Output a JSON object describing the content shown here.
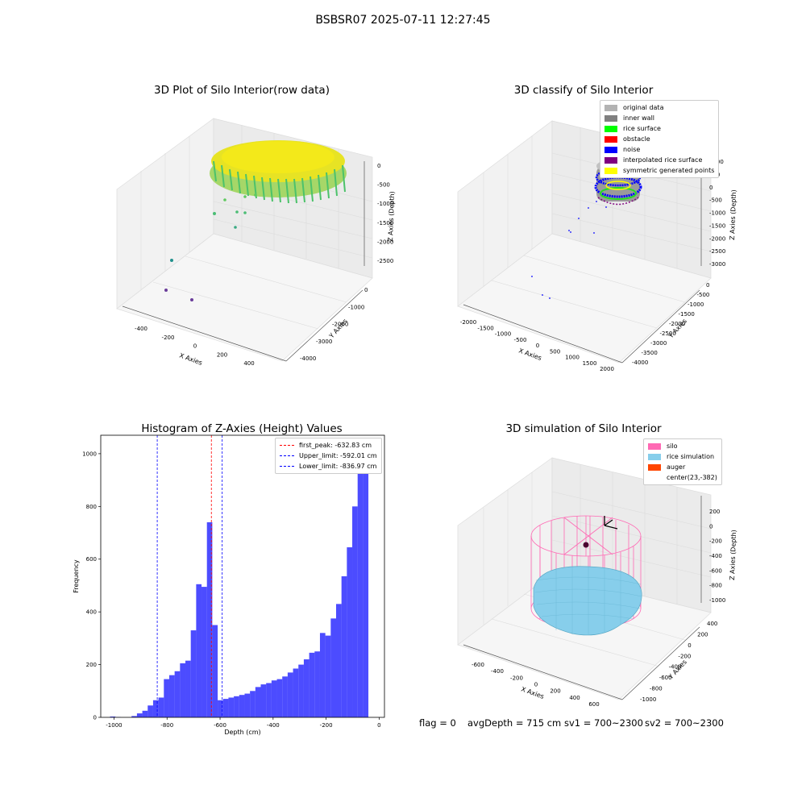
{
  "suptitle": "BSBSR07 2025-07-11 12:27:45",
  "plot1": {
    "title": "3D Plot of Silo Interior(row data)",
    "xlabel": "X Axies",
    "ylabel": "Y Axies",
    "zlabel": "Z Axies (Depth)",
    "xticks": [
      "-400",
      "-200",
      "0",
      "200",
      "400"
    ],
    "yticks": [
      "0",
      "-1000",
      "-2000",
      "-3000",
      "-4000"
    ],
    "zticks": [
      "0",
      "-500",
      "-1000",
      "-1500",
      "-2000",
      "-2500"
    ]
  },
  "plot2": {
    "title": "3D classify of Silo Interior",
    "xlabel": "X Axies",
    "ylabel": "Y Axies",
    "zlabel": "Z Axies (Depth)",
    "xticks": [
      "-2000",
      "-1500",
      "-1000",
      "-500",
      "0",
      "500",
      "1000",
      "1500",
      "2000"
    ],
    "yticks": [
      "0",
      "-500",
      "-1000",
      "-1500",
      "-2000",
      "-2500",
      "-3000",
      "-3500",
      "-4000"
    ],
    "zticks": [
      "1000",
      "500",
      "0",
      "-500",
      "-1000",
      "-1500",
      "-2000",
      "-2500",
      "-3000"
    ],
    "legend": [
      {
        "label": "original data",
        "color": "#b3b3b3"
      },
      {
        "label": "inner wall",
        "color": "#808080"
      },
      {
        "label": "rice surface",
        "color": "#00ff00"
      },
      {
        "label": "obstacle",
        "color": "#ff0000"
      },
      {
        "label": "noise",
        "color": "#0000ff"
      },
      {
        "label": "interpolated rice surface",
        "color": "#800080"
      },
      {
        "label": "symmetric generated points",
        "color": "#ffff00"
      }
    ]
  },
  "plot4": {
    "title": "3D simulation of Silo Interior",
    "xlabel": "X Axies",
    "ylabel": "Y Axies",
    "zlabel": "Z Axies (Depth)",
    "xticks": [
      "-600",
      "-400",
      "-200",
      "0",
      "200",
      "400",
      "600"
    ],
    "yticks": [
      "400",
      "200",
      "0",
      "-200",
      "-400",
      "-600",
      "-800",
      "-1000"
    ],
    "zticks": [
      "200",
      "0",
      "-200",
      "-400",
      "-600",
      "-800",
      "-1000"
    ],
    "legend": [
      {
        "label": "silo",
        "color": "#ff69b4"
      },
      {
        "label": "rice simulation",
        "color": "#87ceeb"
      },
      {
        "label": "auger",
        "color": "#ff4500"
      },
      {
        "label": "center(23,-382)",
        "color": ""
      }
    ]
  },
  "bottom_text": {
    "flag": "flag = 0",
    "avg": "avgDepth = 715 cm",
    "sv1": "sv1 = 700~2300",
    "sv2": "sv2 = 700~2300"
  },
  "chart_data": {
    "type": "bar",
    "title": "Histogram of Z-Axies (Height) Values",
    "xlabel": "Depth (cm)",
    "ylabel": "Frequency",
    "xlim": [
      -1050,
      20
    ],
    "ylim": [
      0,
      1070
    ],
    "bar_color": "#0000ff",
    "xticks": [
      -1000,
      -800,
      -600,
      -400,
      -200,
      0
    ],
    "yticks": [
      0,
      200,
      400,
      600,
      800,
      1000
    ],
    "bin_width": 20.3,
    "bin_starts": [
      -1015,
      -994.7,
      -974.4,
      -954.1,
      -933.8,
      -913.5,
      -893.2,
      -872.9,
      -852.6,
      -832.3,
      -812,
      -791.7,
      -771.4,
      -751.1,
      -730.8,
      -710.5,
      -690.2,
      -669.9,
      -649.6,
      -629.3,
      -609,
      -588.7,
      -568.4,
      -548.1,
      -527.8,
      -507.5,
      -487.2,
      -466.9,
      -446.6,
      -426.3,
      -406,
      -385.7,
      -365.4,
      -345.1,
      -324.8,
      -304.5,
      -284.2,
      -263.9,
      -243.6,
      -223.3,
      -203,
      -182.7,
      -162.4,
      -142.1,
      -121.8,
      -101.5,
      -81.2,
      -60.9,
      -40.6,
      -20.3
    ],
    "values": [
      3,
      1,
      0,
      0,
      5,
      15,
      25,
      45,
      65,
      75,
      145,
      160,
      175,
      205,
      215,
      330,
      505,
      495,
      740,
      350,
      65,
      70,
      75,
      80,
      85,
      90,
      100,
      115,
      125,
      130,
      140,
      145,
      155,
      170,
      185,
      200,
      220,
      245,
      250,
      320,
      310,
      375,
      430,
      535,
      645,
      800,
      1060,
      1000,
      0,
      0
    ],
    "lines": [
      {
        "label": "first_peak: -632.83 cm",
        "x": -632.83,
        "color": "#ff0000"
      },
      {
        "label": "Upper_limit: -592.01 cm",
        "x": -592.01,
        "color": "#0000ff"
      },
      {
        "label": "Lower_limit: -836.97 cm",
        "x": -836.97,
        "color": "#0000ff"
      }
    ]
  }
}
